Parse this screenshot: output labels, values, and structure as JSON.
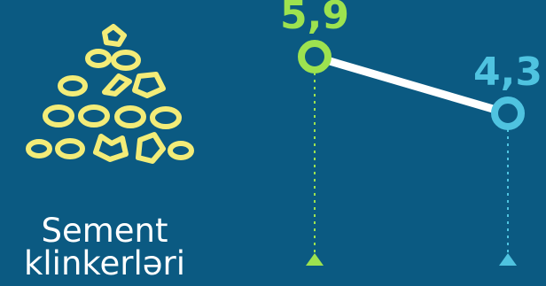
{
  "icon": {
    "name": "clinker-pile-icon",
    "color": "#f3ec78"
  },
  "caption": {
    "line1": "Sement",
    "line2": "klinkerləri"
  },
  "chart_data": {
    "type": "line",
    "categories": [
      "",
      ""
    ],
    "values": [
      5.9,
      4.3
    ],
    "data_labels": [
      "5,9",
      "4,3"
    ],
    "point_colors": [
      "#9de24f",
      "#4fc3e0"
    ],
    "line_color": "#ffffff",
    "ylim": [
      3.0,
      7.0
    ],
    "title": "",
    "xlabel": "",
    "ylabel": ""
  }
}
